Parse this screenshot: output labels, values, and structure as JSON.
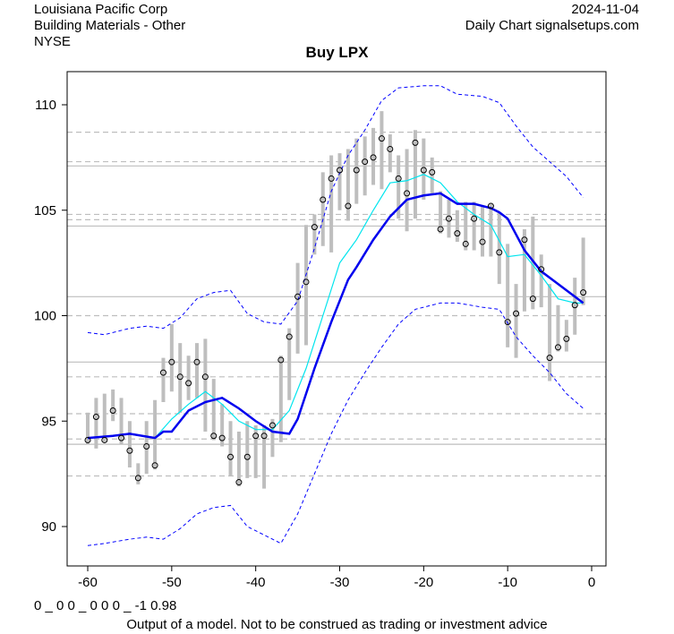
{
  "header": {
    "company": "Louisiana Pacific Corp",
    "industry": "Building Materials - Other",
    "exchange": "NYSE",
    "date": "2024-11-04",
    "source": "Daily Chart signalsetups.com"
  },
  "footer": {
    "code": "0 _ 0 0 _ 0 0 0 _ -1 0.98",
    "disclaimer": "Output of a model. Not to be construed as trading or investment advice"
  },
  "colors": {
    "ma_slow": "#0000ee",
    "ma_fast": "#00e5ee",
    "band": "#0000ff",
    "bar": "#bebebe",
    "grid": "#bebebe"
  },
  "chart_data": {
    "type": "line",
    "title": "Buy LPX",
    "xlabel": "",
    "ylabel": "",
    "xlim": [
      -62,
      1.5
    ],
    "ylim": [
      88.1,
      111.5
    ],
    "xticks": [
      -60,
      -50,
      -40,
      -30,
      -20,
      -10,
      0
    ],
    "yticks": [
      90,
      95,
      100,
      105,
      110
    ],
    "hlines_solid": [
      107.1,
      104.25,
      100.9,
      97.8,
      93.9
    ],
    "hlines_dashed": [
      108.7,
      107.3,
      104.8,
      104.55,
      100.0,
      97.1,
      95.35,
      94.15,
      92.4
    ],
    "bars": {
      "x": [
        -60,
        -59,
        -58,
        -57,
        -56,
        -55,
        -54,
        -53,
        -52,
        -51,
        -50,
        -49,
        -48,
        -47,
        -46,
        -45,
        -44,
        -43,
        -42,
        -41,
        -40,
        -39,
        -38,
        -37,
        -36,
        -35,
        -34,
        -33,
        -32,
        -31,
        -30,
        -29,
        -28,
        -27,
        -26,
        -25,
        -24,
        -23,
        -22,
        -21,
        -20,
        -19,
        -18,
        -17,
        -16,
        -15,
        -14,
        -13,
        -12,
        -11,
        -10,
        -9,
        -8,
        -7,
        -6,
        -5,
        -4,
        -3,
        -2,
        -1
      ],
      "close": [
        94.1,
        95.2,
        94.1,
        95.5,
        94.2,
        93.6,
        92.3,
        93.8,
        92.9,
        97.3,
        97.8,
        97.1,
        96.8,
        97.8,
        97.1,
        94.3,
        94.2,
        93.3,
        92.1,
        93.3,
        94.3,
        94.3,
        94.8,
        97.9,
        99.0,
        100.9,
        101.6,
        104.2,
        105.5,
        106.5,
        106.9,
        105.2,
        106.9,
        107.3,
        107.5,
        108.4,
        107.9,
        106.5,
        105.8,
        108.2,
        106.9,
        106.8,
        104.1,
        104.6,
        103.9,
        103.4,
        104.6,
        103.5,
        105.2,
        103.0,
        99.7,
        100.1,
        103.6,
        100.8,
        102.2,
        98.0,
        98.5,
        98.9,
        100.5,
        101.1
      ],
      "low": [
        93.9,
        93.7,
        94.0,
        95.0,
        93.9,
        92.8,
        92.0,
        92.5,
        92.7,
        95.9,
        96.4,
        95.4,
        96.0,
        96.1,
        94.5,
        94.1,
        93.8,
        92.4,
        91.9,
        92.3,
        92.3,
        91.8,
        93.3,
        94.0,
        96.0,
        98.2,
        98.6,
        102.9,
        103.3,
        103.0,
        105.0,
        104.5,
        105.3,
        105.7,
        106.2,
        106.0,
        106.8,
        104.6,
        104.0,
        104.6,
        105.5,
        105.8,
        103.9,
        103.7,
        103.5,
        103.1,
        103.1,
        102.8,
        102.8,
        101.5,
        98.5,
        98.0,
        100.2,
        100.3,
        100.4,
        96.9,
        98.3,
        98.3,
        99.1,
        100.5
      ],
      "high": [
        95.4,
        96.1,
        96.3,
        96.5,
        96.1,
        95.0,
        93.0,
        95.0,
        96.0,
        98.0,
        99.6,
        98.7,
        98.1,
        98.7,
        98.9,
        97.0,
        95.8,
        95.0,
        94.5,
        95.0,
        94.8,
        94.8,
        95.1,
        98.1,
        99.4,
        102.5,
        104.3,
        104.8,
        106.8,
        107.6,
        107.7,
        107.9,
        108.4,
        108.5,
        108.9,
        109.7,
        108.6,
        107.6,
        107.9,
        108.8,
        108.4,
        107.5,
        105.9,
        105.5,
        105.0,
        105.4,
        105.4,
        105.2,
        105.3,
        104.9,
        103.4,
        101.5,
        104.1,
        104.7,
        102.9,
        101.5,
        100.5,
        99.8,
        101.8,
        103.7
      ]
    },
    "series": [
      {
        "name": "upper band",
        "style": "dashed",
        "x": [
          -60,
          -58,
          -55,
          -53,
          -51,
          -49,
          -47,
          -45,
          -43,
          -41,
          -39,
          -37,
          -35,
          -33,
          -31,
          -29,
          -27,
          -25,
          -23,
          -20,
          -18,
          -16,
          -13,
          -11,
          -9,
          -7,
          -5,
          -3,
          -1
        ],
        "y": [
          99.2,
          99.1,
          99.4,
          99.5,
          99.4,
          99.9,
          100.8,
          101.1,
          101.2,
          100.1,
          99.7,
          99.6,
          100.7,
          103.2,
          105.9,
          107.6,
          108.8,
          110.2,
          110.8,
          110.9,
          110.9,
          110.5,
          110.4,
          110.1,
          109.0,
          108.0,
          107.3,
          106.6,
          105.6
        ]
      },
      {
        "name": "lower band",
        "style": "dashed",
        "x": [
          -60,
          -58,
          -55,
          -53,
          -51,
          -49,
          -47,
          -45,
          -43,
          -41,
          -39,
          -37,
          -35,
          -33,
          -31,
          -29,
          -27,
          -25,
          -23,
          -21,
          -18,
          -16,
          -13,
          -11,
          -9,
          -7,
          -5,
          -3,
          -1
        ],
        "y": [
          89.1,
          89.2,
          89.4,
          89.5,
          89.4,
          89.9,
          90.6,
          90.9,
          91.0,
          90.0,
          89.6,
          89.2,
          90.6,
          92.5,
          94.4,
          96.0,
          97.3,
          98.5,
          99.6,
          100.3,
          100.6,
          100.6,
          100.4,
          100.3,
          99.0,
          98.1,
          97.3,
          96.3,
          95.6
        ]
      },
      {
        "name": "fast average",
        "style": "thin",
        "x": [
          -60,
          -55,
          -52,
          -50,
          -48,
          -46,
          -44,
          -42,
          -40,
          -38,
          -36,
          -34,
          -32,
          -30,
          -28,
          -26,
          -24,
          -22,
          -20,
          -18,
          -16,
          -14,
          -12,
          -10,
          -8,
          -6,
          -4,
          -2,
          -1
        ],
        "y": [
          94.2,
          94.4,
          94.2,
          95.1,
          95.8,
          96.4,
          95.8,
          95.0,
          94.6,
          94.6,
          95.5,
          97.5,
          100.0,
          102.5,
          103.6,
          105.0,
          106.3,
          106.4,
          106.7,
          106.3,
          105.4,
          104.8,
          104.3,
          102.8,
          102.9,
          101.9,
          100.8,
          100.6,
          100.6
        ]
      },
      {
        "name": "slow average",
        "style": "thick",
        "x": [
          -60,
          -57,
          -55,
          -52,
          -51,
          -50,
          -48,
          -46,
          -44,
          -42,
          -40,
          -38,
          -36,
          -35,
          -33,
          -31,
          -29,
          -28,
          -26,
          -24,
          -22,
          -20,
          -18,
          -16,
          -14,
          -12,
          -11,
          -10,
          -8,
          -6,
          -4,
          -2,
          -1
        ],
        "y": [
          94.2,
          94.3,
          94.4,
          94.2,
          94.5,
          94.5,
          95.5,
          95.9,
          96.1,
          95.6,
          95.0,
          94.5,
          94.4,
          95.1,
          97.5,
          99.7,
          101.7,
          102.3,
          103.6,
          104.7,
          105.5,
          105.7,
          105.8,
          105.3,
          105.3,
          105.1,
          104.9,
          104.6,
          103.1,
          102.1,
          101.5,
          100.9,
          100.6
        ]
      }
    ]
  }
}
